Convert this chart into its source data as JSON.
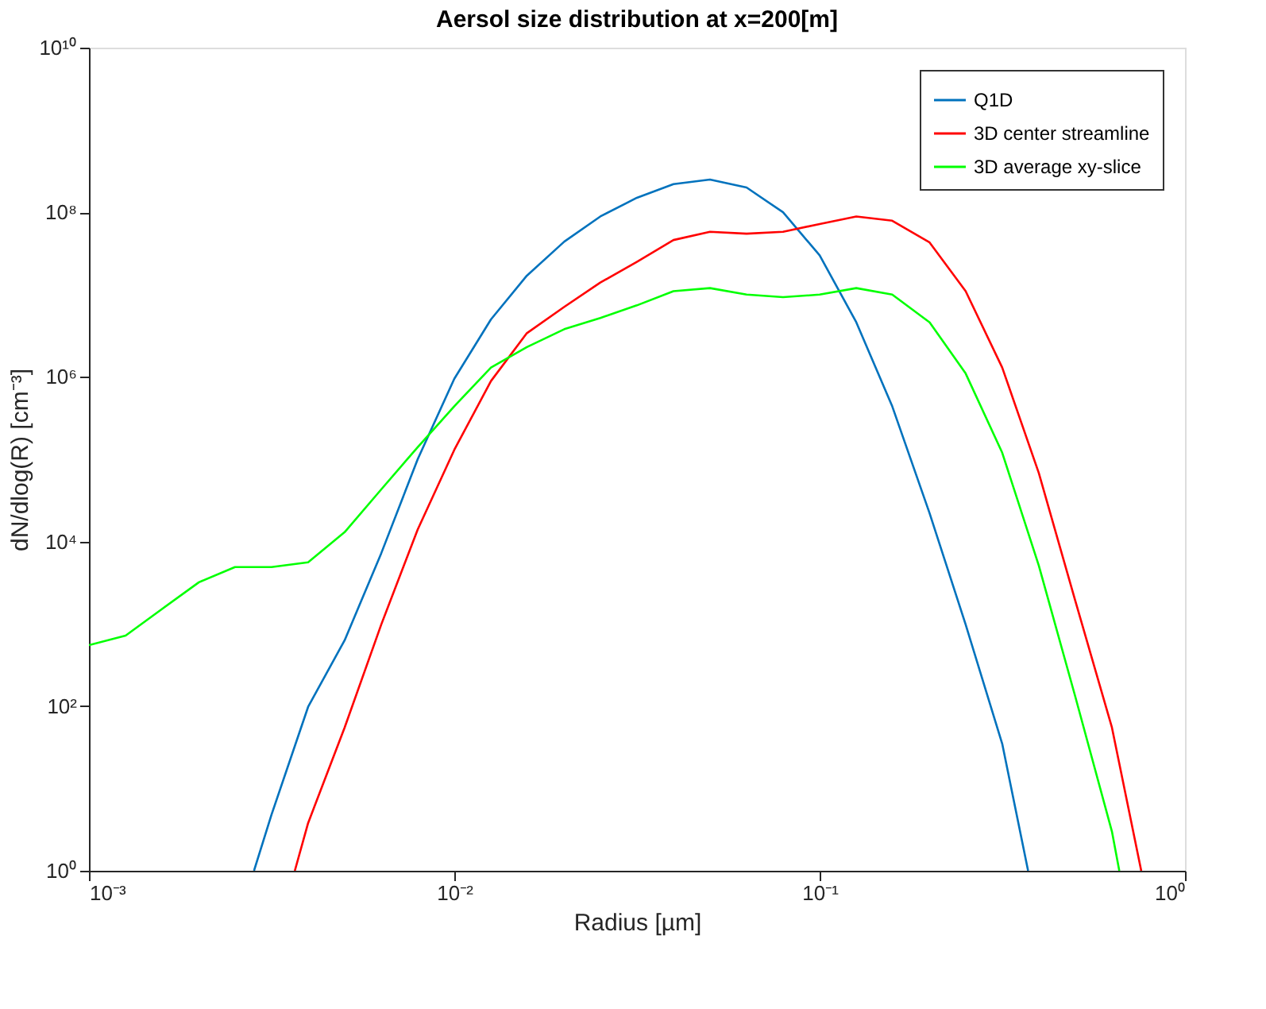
{
  "chart_data": {
    "type": "line",
    "title": "Aersol size distribution at x=200[m]",
    "xlabel": "Radius [µm]",
    "ylabel": "dN/dlog(R) [cm⁻³]",
    "log": "xy",
    "grid": false,
    "legend": "top right",
    "marker": "none",
    "line_style": "solid",
    "xlim": [
      0.001,
      1
    ],
    "ylim": [
      1,
      10000000000
    ],
    "xticks": [
      {
        "value": 0.001,
        "label": "10⁻³"
      },
      {
        "value": 0.01,
        "label": "10⁻²"
      },
      {
        "value": 0.1,
        "label": "10⁻¹"
      },
      {
        "value": 1,
        "label": "10⁰"
      }
    ],
    "yticks": [
      {
        "value": 1,
        "label": "10⁰"
      },
      {
        "value": 100,
        "label": "10²"
      },
      {
        "value": 10000,
        "label": "10⁴"
      },
      {
        "value": 1000000,
        "label": "10⁶"
      },
      {
        "value": 100000000,
        "label": "10⁸"
      },
      {
        "value": 10000000000,
        "label": "10¹⁰"
      }
    ],
    "series": [
      {
        "name": "Q1D",
        "color": "#0072bd",
        "x": [
          0.00283,
          0.00316,
          0.00398,
          0.00501,
          0.00631,
          0.00794,
          0.01,
          0.0126,
          0.0158,
          0.02,
          0.0251,
          0.0316,
          0.0398,
          0.0501,
          0.0631,
          0.0794,
          0.1,
          0.126,
          0.158,
          0.2,
          0.251,
          0.316,
          0.372
        ],
        "values": [
          1,
          4.8,
          98,
          630,
          7200,
          100000,
          950000,
          5000000,
          17000000,
          44000000,
          89000000,
          150000000,
          220000000,
          250000000,
          200000000,
          100000000,
          30000000,
          4600000,
          440000,
          22000,
          980,
          35,
          1
        ]
      },
      {
        "name": "3D center streamline",
        "color": "#ff0000",
        "x": [
          0.00366,
          0.00398,
          0.00501,
          0.00631,
          0.00794,
          0.01,
          0.0126,
          0.0158,
          0.02,
          0.0251,
          0.0316,
          0.0398,
          0.0501,
          0.0631,
          0.0794,
          0.1,
          0.126,
          0.158,
          0.2,
          0.251,
          0.316,
          0.398,
          0.501,
          0.631,
          0.759
        ],
        "values": [
          1,
          3.8,
          55,
          980,
          14000,
          130000,
          890000,
          3400000,
          7100000,
          14000000,
          25000000,
          46000000,
          58000000,
          55000000,
          58000000,
          72000000,
          89000000,
          79000000,
          43000000,
          11000000,
          1300000,
          68000,
          1900,
          55,
          1
        ]
      },
      {
        "name": "3D average xy-slice",
        "color": "#00ff00",
        "x": [
          0.001,
          0.00126,
          0.00158,
          0.002,
          0.00251,
          0.00316,
          0.00398,
          0.00501,
          0.00631,
          0.00794,
          0.01,
          0.0126,
          0.0158,
          0.02,
          0.0251,
          0.0316,
          0.0398,
          0.0501,
          0.0631,
          0.0794,
          0.1,
          0.126,
          0.158,
          0.2,
          0.251,
          0.316,
          0.398,
          0.501,
          0.631,
          0.661
        ],
        "values": [
          550,
          720,
          1500,
          3200,
          4900,
          4900,
          5600,
          13000,
          43000,
          140000,
          440000,
          1300000,
          2300000,
          3800000,
          5200000,
          7400000,
          11000000,
          12000000,
          10000000,
          9300000,
          10000000,
          12000000,
          10000000,
          4600000,
          1100000,
          120000,
          5100,
          130,
          3,
          1
        ]
      }
    ]
  }
}
